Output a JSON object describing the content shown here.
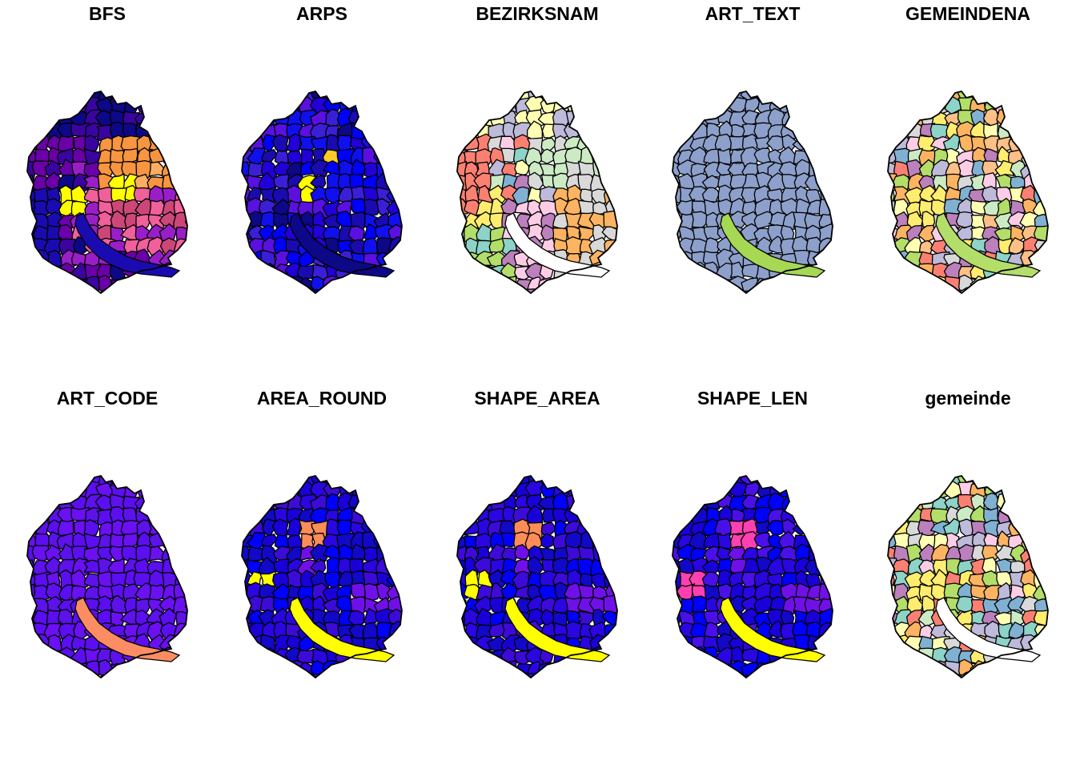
{
  "panels": [
    {
      "title": "BFS",
      "scheme": "plasma-mixed",
      "palette": [
        "#0d0887",
        "#3a04a0",
        "#6a00a8",
        "#9a1ec8",
        "#cc4778",
        "#f0609a",
        "#f89540",
        "#fdca26",
        "#ffff00"
      ]
    },
    {
      "title": "ARPS",
      "scheme": "plasma-blue",
      "palette": [
        "#0d0887",
        "#1a0bb0",
        "#2200d8",
        "#1010ee",
        "#0000ff",
        "#3b1fd6",
        "#5a10e0"
      ]
    },
    {
      "title": "BEZIRKSNAM",
      "scheme": "pastel",
      "palette": [
        "#8dd3c7",
        "#ffffb3",
        "#bebada",
        "#fb8072",
        "#80b1d3",
        "#fdb462",
        "#b3de69",
        "#fccde5",
        "#d9d9d9",
        "#bc80bd",
        "#ccebc5",
        "#ffed6f"
      ]
    },
    {
      "title": "ART_TEXT",
      "scheme": "slate",
      "palette": [
        "#8da0cb"
      ]
    },
    {
      "title": "GEMEINDENA",
      "scheme": "pastel-mixed",
      "palette": [
        "#8dd3c7",
        "#ffffb3",
        "#bebada",
        "#fb8072",
        "#80b1d3",
        "#fdb462",
        "#b3de69",
        "#fccde5",
        "#d9d9d9",
        "#bc80bd",
        "#ccebc5",
        "#ffed6f",
        "#fdc086"
      ]
    },
    {
      "title": "ART_CODE",
      "scheme": "violet",
      "palette": [
        "#5b0ef0",
        "#6a10f2",
        "#5c12e8"
      ]
    },
    {
      "title": "AREA_ROUND",
      "scheme": "blue-hot",
      "palette": [
        "#1a00d8",
        "#0000ff",
        "#2a06e0",
        "#3d0bd8",
        "#1208c8"
      ],
      "hot": "#fc8d59",
      "mid": "#7010e8",
      "lake": "#ffff00"
    },
    {
      "title": "SHAPE_AREA",
      "scheme": "blue-hot",
      "palette": [
        "#1a00d8",
        "#0000ff",
        "#2a06e0",
        "#3d0bd8",
        "#1208c8"
      ],
      "hot": "#fc8d59",
      "mid": "#7010e8",
      "lake": "#ffff00"
    },
    {
      "title": "SHAPE_LEN",
      "scheme": "blue-pink",
      "palette": [
        "#1a00d8",
        "#0000ff",
        "#2a06e0",
        "#4a10e8",
        "#1208c8"
      ],
      "hot": "#ff40b0",
      "mid": "#7010e8",
      "lake": "#ffff00"
    },
    {
      "title": "gemeinde",
      "scheme": "pastel-mixed",
      "palette": [
        "#8dd3c7",
        "#ffffb3",
        "#bebada",
        "#fb8072",
        "#80b1d3",
        "#fdb462",
        "#b3de69",
        "#fccde5",
        "#d9d9d9",
        "#bc80bd",
        "#ccebc5",
        "#ffed6f"
      ]
    }
  ]
}
